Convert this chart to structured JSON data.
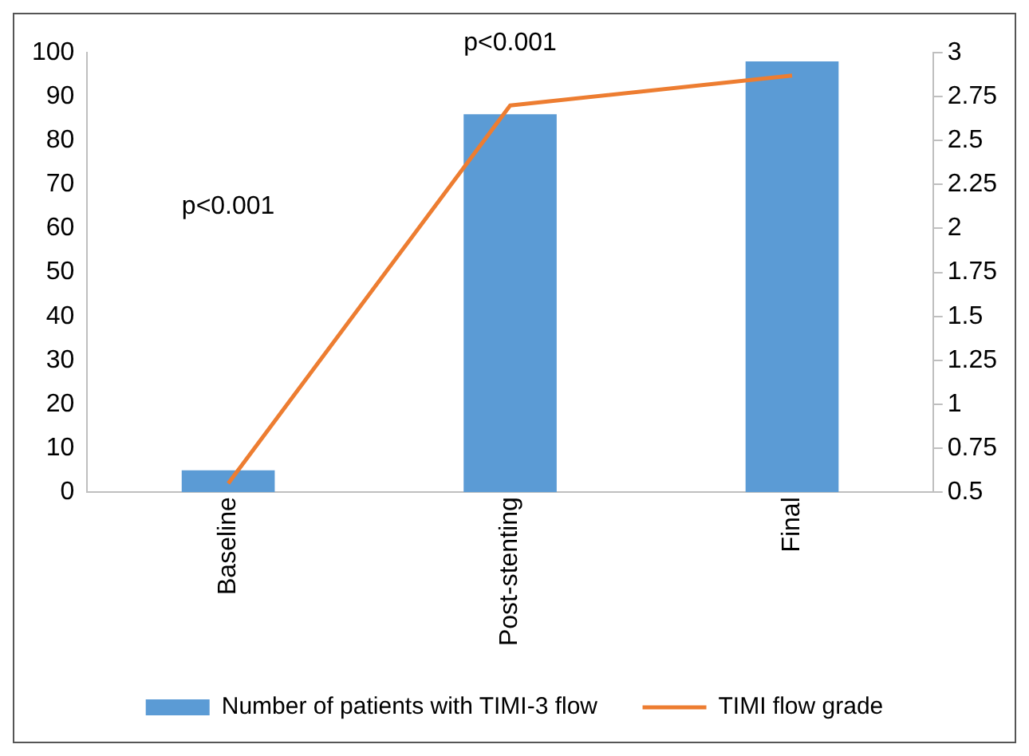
{
  "chart_data": {
    "type": "bar",
    "categories": [
      "Baseline",
      "Post-stenting",
      "Final"
    ],
    "series": [
      {
        "name": "Number of patients with TIMI-3 flow",
        "color": "#5b9bd5",
        "values": [
          5,
          86,
          98
        ]
      },
      {
        "name": "TIMI flow grade",
        "type": "line",
        "axis": "y2",
        "color": "#ed7d31",
        "values": [
          0.55,
          2.7,
          2.87
        ]
      }
    ],
    "ylim": [
      0,
      100
    ],
    "yticks": [
      0,
      10,
      20,
      30,
      40,
      50,
      60,
      70,
      80,
      90,
      100
    ],
    "y2lim": [
      0.5,
      3
    ],
    "y2ticks": [
      0.5,
      0.75,
      1,
      1.25,
      1.5,
      1.75,
      2,
      2.25,
      2.5,
      2.75,
      3
    ],
    "annotations": [
      "p<0.001",
      "p<0.001"
    ],
    "grid": false,
    "legend": "bottom",
    "marker": "none"
  }
}
